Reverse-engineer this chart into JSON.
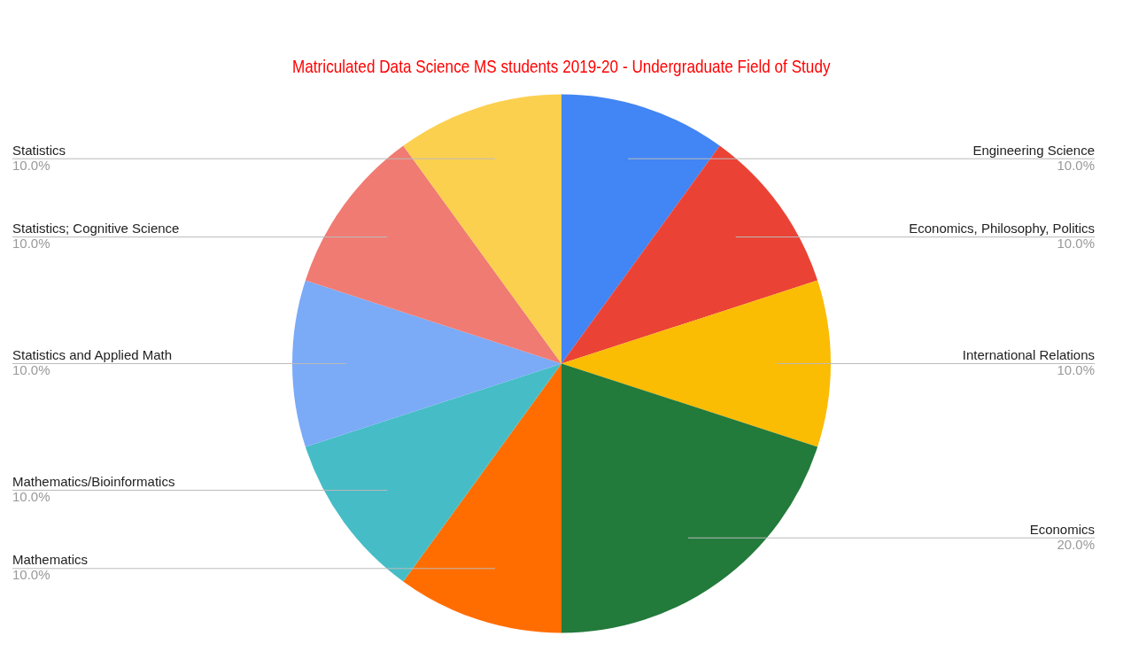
{
  "chart_data": {
    "type": "pie",
    "title": "Matriculated Data Science MS students 2019-20 - Undergraduate Field of Study",
    "categories": [
      "Engineering Science",
      "Economics, Philosophy, Politics",
      "International Relations",
      "Economics",
      "Mathematics",
      "Mathematics/Bioinformatics",
      "Statistics and Applied Math",
      "Statistics; Cognitive Science",
      "Statistics"
    ],
    "values": [
      10,
      10,
      10,
      20,
      10,
      10,
      10,
      10,
      10
    ],
    "value_labels": [
      "10.0%",
      "10.0%",
      "10.0%",
      "20.0%",
      "10.0%",
      "10.0%",
      "10.0%",
      "10.0%",
      "10.0%"
    ],
    "colors": [
      "#4285f4",
      "#ea4335",
      "#fbbc04",
      "#227a3b",
      "#ff6d01",
      "#46bdc6",
      "#7baaf7",
      "#f07b72",
      "#fcd04f"
    ],
    "legend": false
  }
}
